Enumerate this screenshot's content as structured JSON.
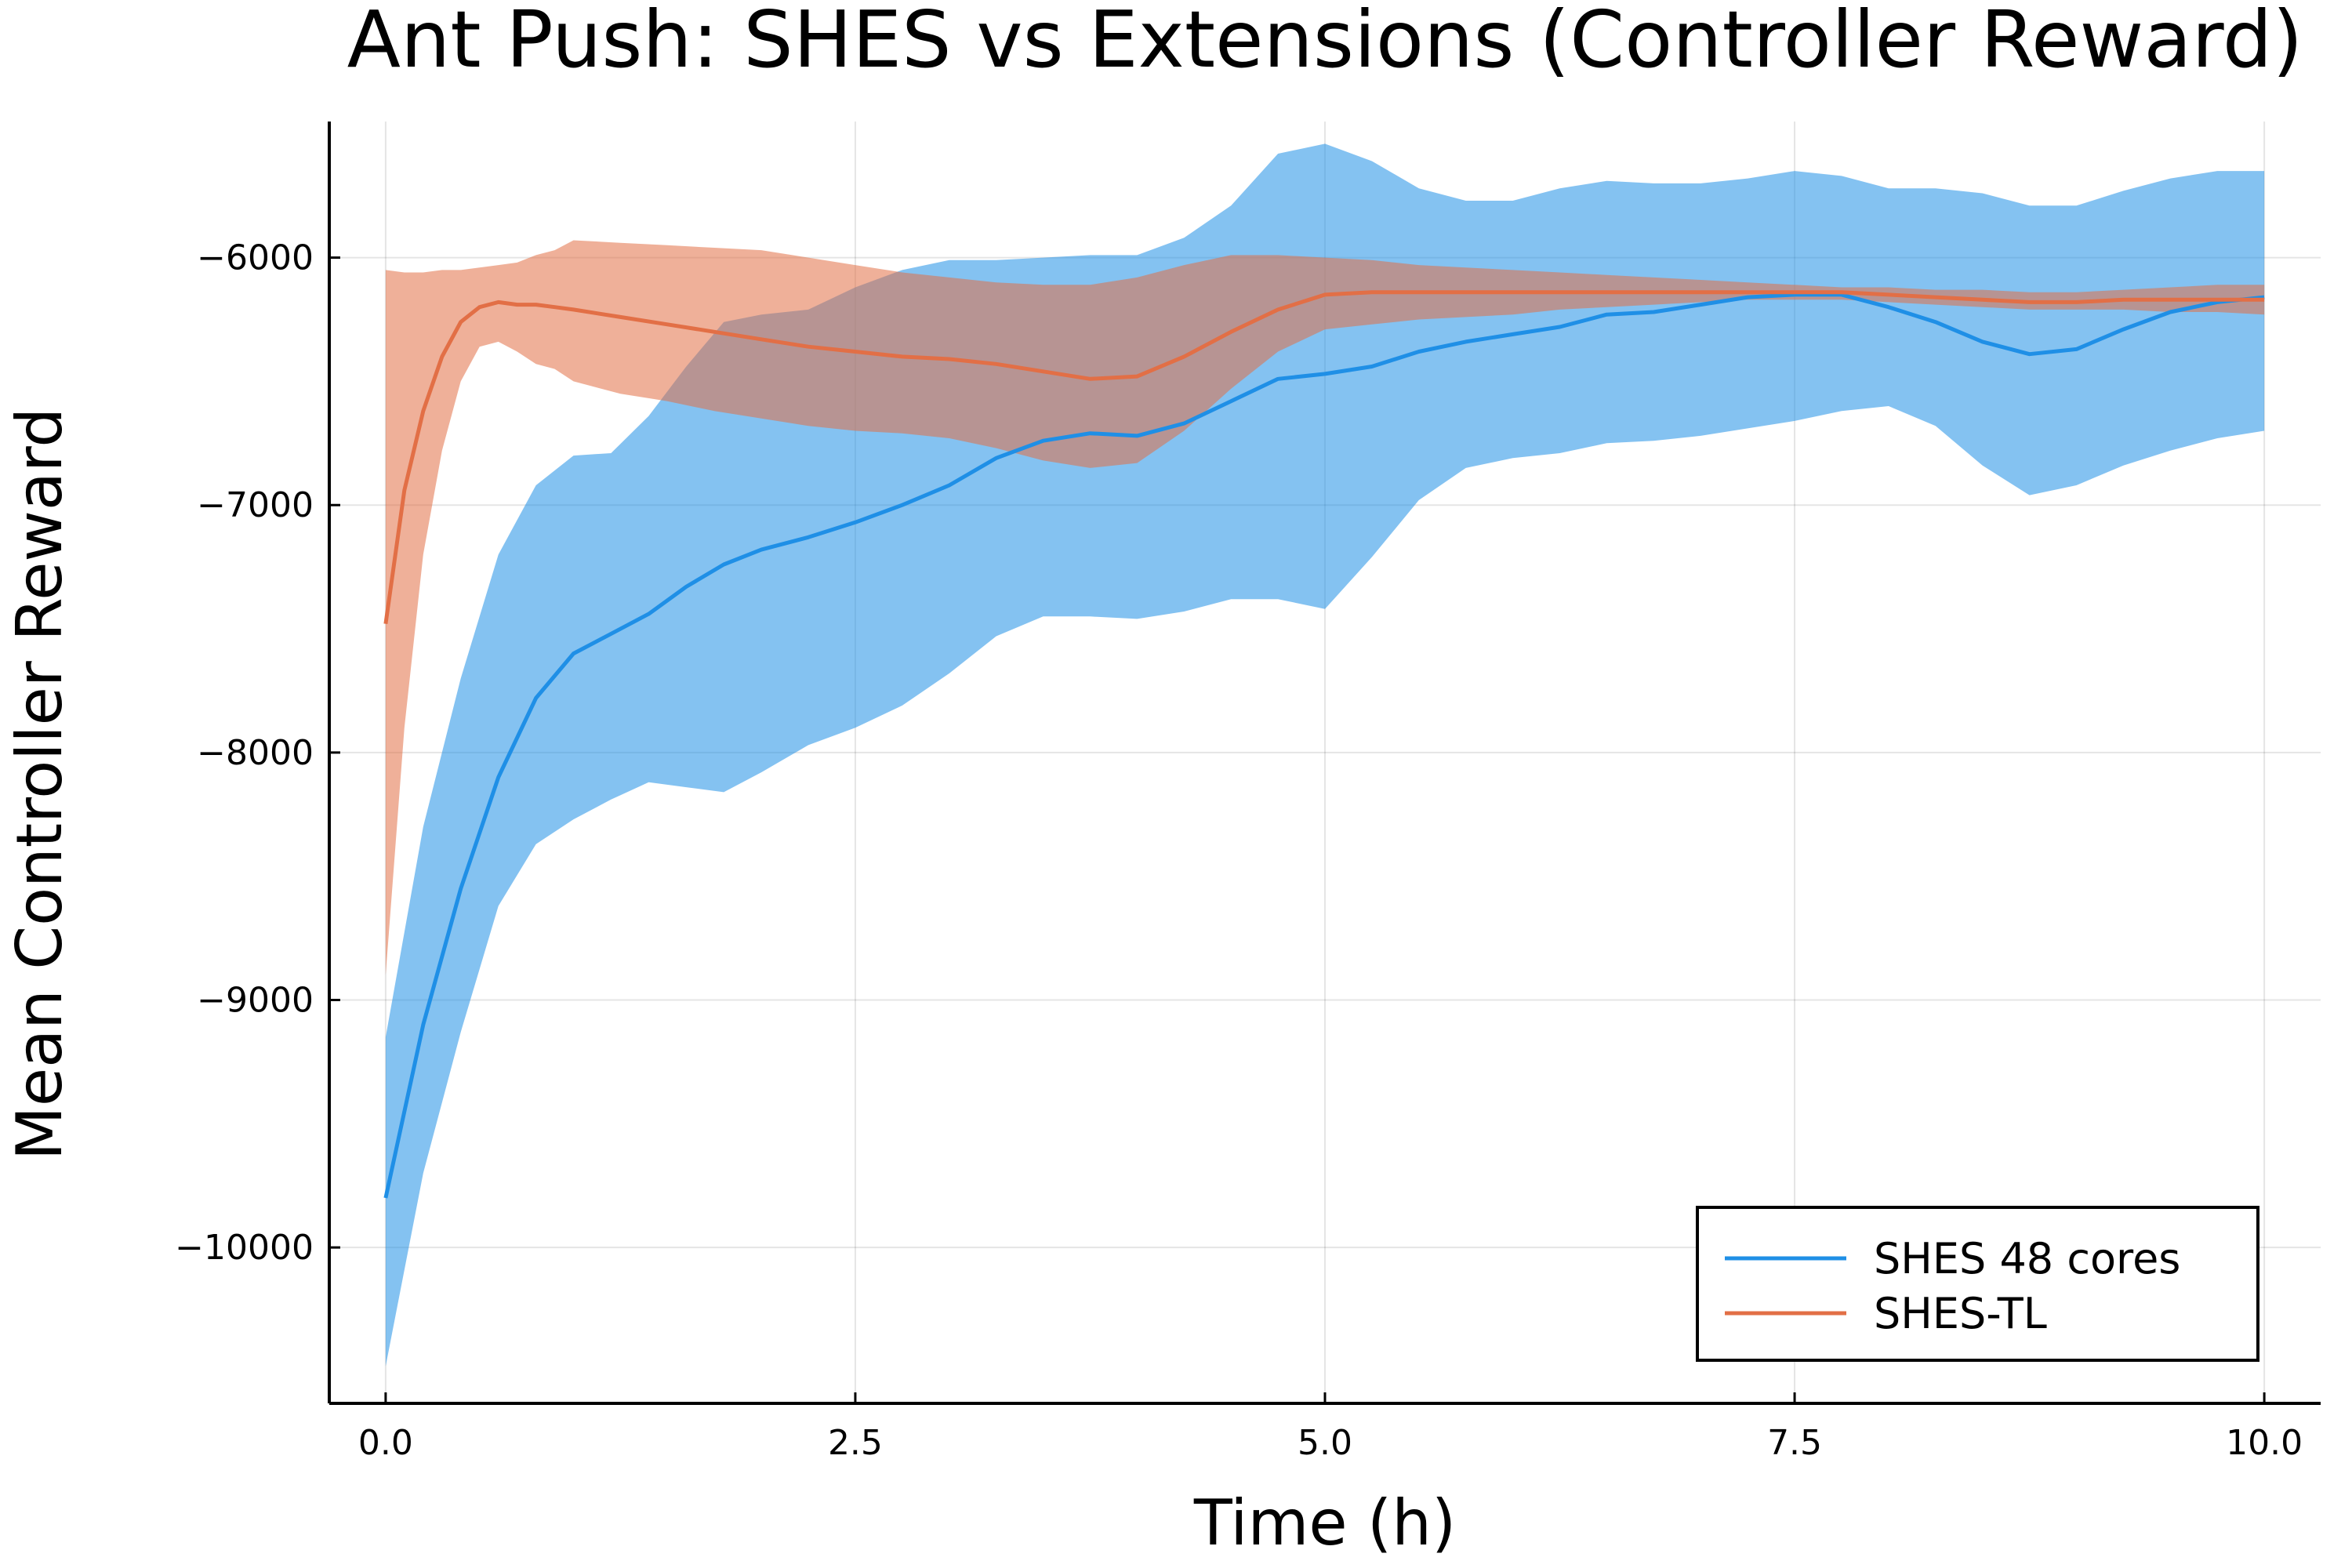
{
  "chart_data": {
    "type": "line",
    "title": "Ant Push: SHES vs Extensions (Controller Reward)",
    "xlabel": "Time (h)",
    "ylabel": "Mean Controller Reward",
    "xlim": [
      -0.3,
      10.3
    ],
    "ylim": [
      -10630,
      -5450
    ],
    "xticks": [
      0.0,
      2.5,
      5.0,
      7.5,
      10.0
    ],
    "xtick_labels": [
      "0.0",
      "2.5",
      "5.0",
      "7.5",
      "10.0"
    ],
    "yticks": [
      -10000,
      -9000,
      -8000,
      -7000,
      -6000
    ],
    "ytick_labels": [
      "−10000",
      "−9000",
      "−8000",
      "−7000",
      "−6000"
    ],
    "grid": true,
    "legend_position": "bottom-right",
    "series": [
      {
        "name": "SHES 48 cores",
        "color": "#1f8fe6",
        "band_color": "#7ec8f8",
        "x": [
          0.0,
          0.2,
          0.4,
          0.6,
          0.8,
          1.0,
          1.2,
          1.4,
          1.6,
          1.8,
          2.0,
          2.25,
          2.5,
          2.75,
          3.0,
          3.25,
          3.5,
          3.75,
          4.0,
          4.25,
          4.5,
          4.75,
          5.0,
          5.25,
          5.5,
          5.75,
          6.0,
          6.25,
          6.5,
          6.75,
          7.0,
          7.25,
          7.5,
          7.75,
          8.0,
          8.25,
          8.5,
          8.75,
          9.0,
          9.25,
          9.5,
          9.75,
          10.0
        ],
        "mean": [
          -9800,
          -9100,
          -8550,
          -8100,
          -7780,
          -7600,
          -7520,
          -7440,
          -7330,
          -7240,
          -7180,
          -7130,
          -7070,
          -7000,
          -6920,
          -6810,
          -6740,
          -6710,
          -6720,
          -6670,
          -6580,
          -6490,
          -6470,
          -6440,
          -6380,
          -6340,
          -6310,
          -6280,
          -6230,
          -6220,
          -6190,
          -6160,
          -6150,
          -6150,
          -6200,
          -6260,
          -6340,
          -6390,
          -6370,
          -6290,
          -6220,
          -6180,
          -6160
        ],
        "upper": [
          -9150,
          -8300,
          -7700,
          -7200,
          -6920,
          -6800,
          -6790,
          -6640,
          -6440,
          -6260,
          -6230,
          -6210,
          -6120,
          -6050,
          -6010,
          -6010,
          -6000,
          -5990,
          -5990,
          -5920,
          -5790,
          -5580,
          -5540,
          -5610,
          -5720,
          -5770,
          -5770,
          -5720,
          -5690,
          -5700,
          -5700,
          -5680,
          -5650,
          -5670,
          -5720,
          -5720,
          -5740,
          -5790,
          -5790,
          -5730,
          -5680,
          -5650,
          -5650
        ],
        "lower": [
          -10480,
          -9700,
          -9130,
          -8620,
          -8370,
          -8270,
          -8190,
          -8120,
          -8140,
          -8160,
          -8080,
          -7970,
          -7900,
          -7810,
          -7680,
          -7530,
          -7450,
          -7450,
          -7460,
          -7430,
          -7380,
          -7380,
          -7420,
          -7210,
          -6980,
          -6850,
          -6810,
          -6790,
          -6750,
          -6740,
          -6720,
          -6690,
          -6660,
          -6620,
          -6600,
          -6680,
          -6840,
          -6960,
          -6920,
          -6840,
          -6780,
          -6730,
          -6700
        ]
      },
      {
        "name": "SHES-TL",
        "color": "#e26f46",
        "band_color": "#efb29f",
        "x": [
          0.0,
          0.1,
          0.2,
          0.3,
          0.4,
          0.5,
          0.6,
          0.7,
          0.8,
          0.9,
          1.0,
          1.25,
          1.5,
          1.75,
          2.0,
          2.25,
          2.5,
          2.75,
          3.0,
          3.25,
          3.5,
          3.75,
          4.0,
          4.25,
          4.5,
          4.75,
          5.0,
          5.25,
          5.5,
          5.75,
          6.0,
          6.25,
          6.5,
          6.75,
          7.0,
          7.25,
          7.5,
          7.75,
          8.0,
          8.25,
          8.5,
          8.75,
          9.0,
          9.25,
          9.5,
          9.75,
          10.0
        ],
        "mean": [
          -7480,
          -6940,
          -6620,
          -6400,
          -6260,
          -6200,
          -6180,
          -6190,
          -6190,
          -6200,
          -6210,
          -6240,
          -6270,
          -6300,
          -6330,
          -6360,
          -6380,
          -6400,
          -6410,
          -6430,
          -6460,
          -6490,
          -6480,
          -6400,
          -6300,
          -6210,
          -6150,
          -6140,
          -6140,
          -6140,
          -6140,
          -6140,
          -6140,
          -6140,
          -6140,
          -6140,
          -6140,
          -6140,
          -6150,
          -6160,
          -6170,
          -6180,
          -6180,
          -6170,
          -6170,
          -6170,
          -6170
        ],
        "upper": [
          -6050,
          -6060,
          -6060,
          -6050,
          -6050,
          -6040,
          -6030,
          -6020,
          -5990,
          -5970,
          -5930,
          -5940,
          -5950,
          -5960,
          -5970,
          -6000,
          -6030,
          -6060,
          -6080,
          -6100,
          -6110,
          -6110,
          -6080,
          -6030,
          -5990,
          -5990,
          -6000,
          -6010,
          -6030,
          -6040,
          -6050,
          -6060,
          -6070,
          -6080,
          -6090,
          -6100,
          -6110,
          -6120,
          -6120,
          -6130,
          -6130,
          -6140,
          -6140,
          -6130,
          -6120,
          -6110,
          -6110
        ],
        "lower": [
          -8900,
          -7900,
          -7200,
          -6780,
          -6500,
          -6360,
          -6340,
          -6380,
          -6430,
          -6450,
          -6500,
          -6550,
          -6580,
          -6620,
          -6650,
          -6680,
          -6700,
          -6710,
          -6730,
          -6770,
          -6820,
          -6850,
          -6830,
          -6700,
          -6530,
          -6380,
          -6290,
          -6270,
          -6250,
          -6240,
          -6230,
          -6210,
          -6200,
          -6190,
          -6180,
          -6170,
          -6170,
          -6170,
          -6180,
          -6190,
          -6200,
          -6210,
          -6210,
          -6210,
          -6220,
          -6220,
          -6230
        ]
      }
    ]
  }
}
